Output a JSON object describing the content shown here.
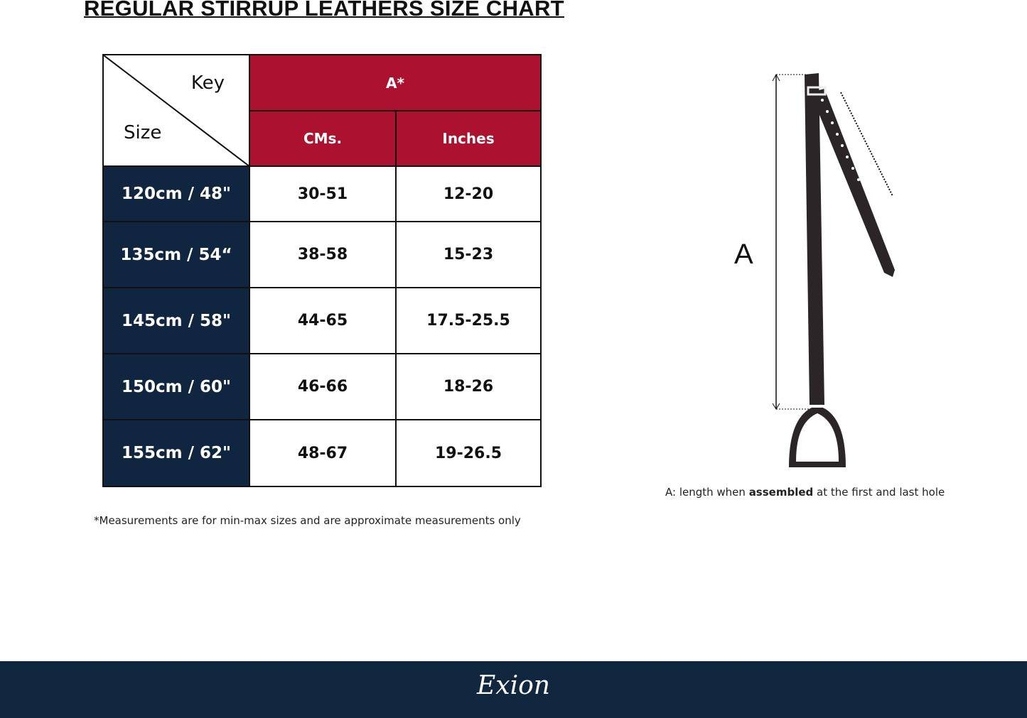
{
  "title": "REGULAR STIRRUP LEATHERS  SIZE CHART",
  "table": {
    "corner_key": "Key",
    "corner_size": "Size",
    "group_header": "A*",
    "columns": [
      "CMs.",
      "Inches"
    ],
    "rows": [
      {
        "size": "120cm / 48\"",
        "cms": "30-51",
        "inches": "12-20"
      },
      {
        "size": "135cm / 54“",
        "cms": "38-58",
        "inches": "15-23"
      },
      {
        "size": "145cm / 58\"",
        "cms": "44-65",
        "inches": "17.5-25.5"
      },
      {
        "size": "150cm / 60\"",
        "cms": "46-66",
        "inches": "18-26"
      },
      {
        "size": "155cm / 62\"",
        "cms": "48-67",
        "inches": "19-26.5"
      }
    ]
  },
  "note": "*Measurements are for min-max sizes and are approximate measurements only",
  "diagram": {
    "label": "A",
    "caption_pre": "A: length when ",
    "caption_bold": "assembled",
    "caption_post": " at the first and last hole"
  },
  "footer": {
    "logo": "Exion"
  },
  "colors": {
    "header_red": "#ad1130",
    "navy": "#10253f"
  }
}
